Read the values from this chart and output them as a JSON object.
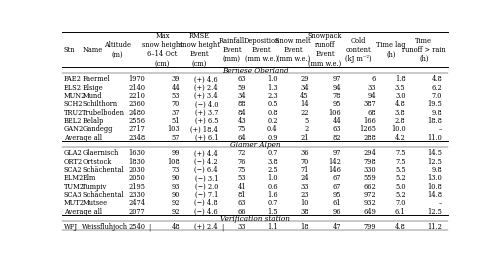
{
  "col_headers": [
    "Stn",
    "Name",
    "Altitude\n(m)",
    "Max\nsnow height\n6–14 Oct\n(cm)",
    "RMSE\nsnow height\nEvent\n(cm)",
    "Rainfall\nEvent\n(mm)",
    "Deposition\nEvent\n(mm w.e.)",
    "Snow melt\nEvent\n(mm w.e.)",
    "Snowpack\nrunoff\nEvent\n(mm w.e.)",
    "Cold\ncontent\n(kJ m⁻²)",
    "Time lag\n(h)",
    "Time\nrunoff > rain\n(h)"
  ],
  "section1_title": "Bernese Oberland",
  "section1_rows": [
    [
      "FAE2",
      "Faermel",
      "1970",
      "39",
      "(+) 4.6",
      "63",
      "1.0",
      "29",
      "97",
      "6",
      "1.8",
      "4.8"
    ],
    [
      "ELS2",
      "Elsige",
      "2140",
      "44",
      "(+) 2.4",
      "59",
      "1.3",
      "34",
      "94",
      "33",
      "3.5",
      "6.2"
    ],
    [
      "MUN2",
      "Mund",
      "2210",
      "53",
      "(+) 3.4",
      "34",
      "2.3",
      "45",
      "78",
      "94",
      "3.0",
      "7.0"
    ],
    [
      "SCH2",
      "Schilthorn",
      "2360",
      "70",
      "(−) 4.0",
      "88",
      "0.5",
      "14",
      "95",
      "387",
      "4.8",
      "19.5"
    ],
    [
      "TRU2",
      "Trubelboden",
      "2480",
      "37",
      "(+) 3.7",
      "84",
      "0.8",
      "22",
      "106",
      "68",
      "3.8",
      "9.8"
    ],
    [
      "BEL2",
      "Belalp",
      "2556",
      "51",
      "(+) 6.5",
      "43",
      "0.2",
      "5",
      "44",
      "166",
      "2.8",
      "18.8"
    ],
    [
      "GAN2",
      "Gandegg",
      "2717",
      "103",
      "(+) 18.4",
      "75",
      "0.4",
      "2",
      "63",
      "1265",
      "10.0",
      "–"
    ]
  ],
  "section1_avg": [
    "Average all",
    "2348",
    "57",
    "(+) 6.1",
    "64",
    "0.9",
    "21",
    "82",
    "288",
    "4.2",
    "11.0"
  ],
  "section2_title": "Glamer Alpen",
  "section2_rows": [
    [
      "GLA2",
      "Glaernisch",
      "1630",
      "99",
      "(+) 4.4",
      "72",
      "0.7",
      "36",
      "97",
      "294",
      "7.5",
      "14.5"
    ],
    [
      "ORT2",
      "Ortstock",
      "1830",
      "108",
      "(−) 4.2",
      "76",
      "3.8",
      "70",
      "142",
      "798",
      "7.5",
      "12.5"
    ],
    [
      "SCA2",
      "Schächental",
      "2030",
      "73",
      "(−) 6.4",
      "75",
      "2.5",
      "71",
      "146",
      "330",
      "5.5",
      "9.8"
    ],
    [
      "ELM2",
      "Elm",
      "2050",
      "90",
      "(−) 3.1",
      "53",
      "1.0",
      "24",
      "67",
      "559",
      "5.2",
      "13.0"
    ],
    [
      "TUM2",
      "Tumpiv",
      "2195",
      "93",
      "(−) 2.0",
      "41",
      "0.6",
      "33",
      "67",
      "662",
      "5.0",
      "10.8"
    ],
    [
      "SCA3",
      "Schächental",
      "2330",
      "90",
      "(−) 7.1",
      "81",
      "1.6",
      "23",
      "95",
      "972",
      "5.2",
      "14.8"
    ],
    [
      "MUT2",
      "Mutsee",
      "2474",
      "92",
      "(−) 4.8",
      "63",
      "0.7",
      "10",
      "61",
      "932",
      "7.0",
      "–"
    ]
  ],
  "section2_avg": [
    "Average all",
    "2077",
    "92",
    "(−) 4.6",
    "66",
    "1.5",
    "38",
    "96",
    "649",
    "6.1",
    "12.5"
  ],
  "section3_title": "Verification station",
  "section3_row": [
    "WFJ",
    "Weissfluhjoch",
    "2540",
    "|",
    "48",
    "(+) 2.4",
    "|",
    "33",
    "1.1",
    "18",
    "47",
    "799",
    "4.8",
    "11.2"
  ],
  "bg_color": "#ffffff",
  "text_color": "#000000"
}
